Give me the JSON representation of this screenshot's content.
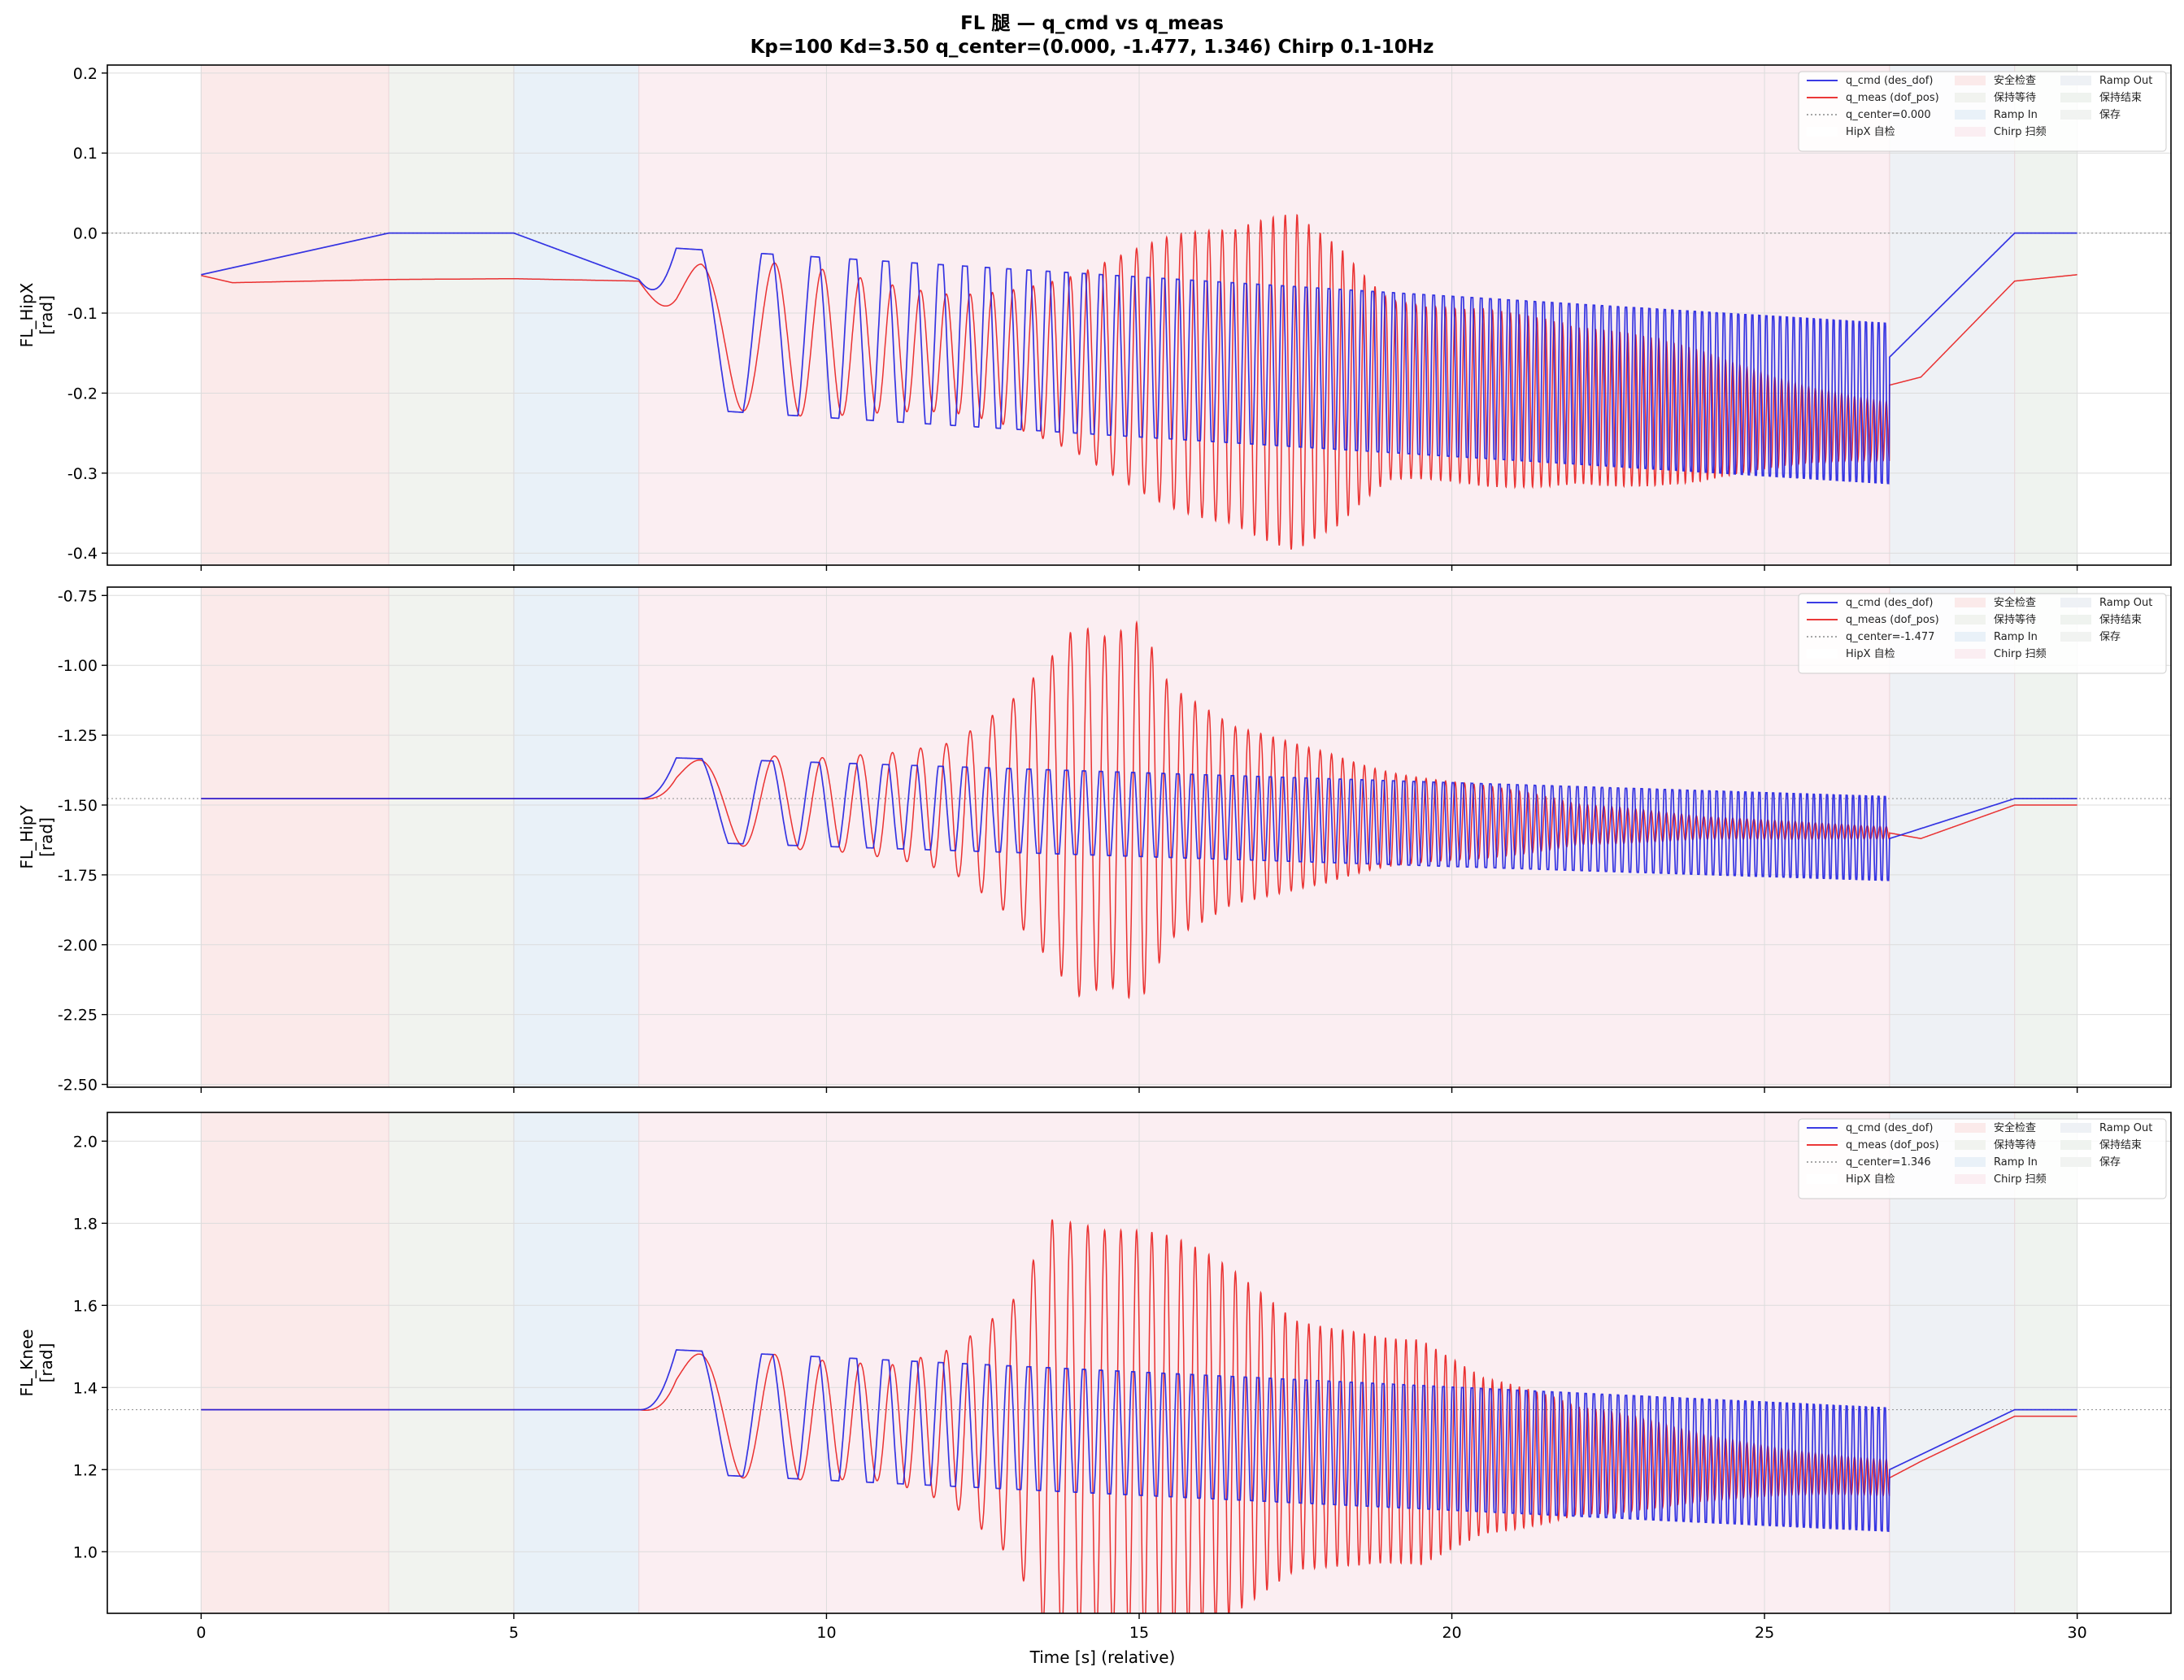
{
  "title_line1": "FL 腿 — q_cmd vs q_meas",
  "title_line2": "Kp=100 Kd=3.50  q_center=(0.000, -1.477, 1.346)  Chirp 0.1-10Hz",
  "colors": {
    "cmd": "#1f1fe0",
    "meas": "#e81c1c",
    "center": "#999999",
    "grid": "#dcdcdc"
  },
  "chart_data": {
    "type": "line",
    "xlabel": "Time [s] (relative)",
    "xlim": [
      -1.5,
      31.5
    ],
    "xticks": [
      0,
      5,
      10,
      15,
      20,
      25,
      30
    ],
    "xtick_labels": [
      "0",
      "5",
      "10",
      "15",
      "20",
      "25",
      "30"
    ],
    "phases": [
      {
        "name": "安全检查",
        "start": 0,
        "end": 3,
        "color": "#fbeaea"
      },
      {
        "name": "保持等待",
        "start": 3,
        "end": 5,
        "color": "#f1f3ef"
      },
      {
        "name": "Ramp In",
        "start": 5,
        "end": 7,
        "color": "#e9f1f8"
      },
      {
        "name": "Chirp 扫频",
        "start": 7,
        "end": 27,
        "color": "#fbeef2"
      },
      {
        "name": "Ramp Out",
        "start": 27,
        "end": 29,
        "color": "#eef1f5"
      },
      {
        "name": "保持结束",
        "start": 29,
        "end": 30,
        "color": "#eff3ef"
      }
    ],
    "chirp": {
      "t_start": 7,
      "t_end": 27,
      "f_start_hz": 0.1,
      "f_end_hz": 10
    },
    "panels": [
      {
        "name": "FL_HipX",
        "ylabel_line1": "FL_HipX",
        "ylabel_line2": "[rad]",
        "ylim": [
          -0.415,
          0.21
        ],
        "yticks": [
          0.2,
          0.1,
          0.0,
          -0.1,
          -0.2,
          -0.3,
          -0.4
        ],
        "ytick_labels": [
          "0.2",
          "0.1",
          "0.0",
          "-0.1",
          "-0.2",
          "-0.3",
          "-0.4"
        ],
        "q_center": 0.0,
        "amplitude": 0.1,
        "chirp_offset": -0.058,
        "cmd_keypoints": [
          [
            0,
            -0.052
          ],
          [
            3,
            0.0
          ],
          [
            5,
            0.0
          ],
          [
            7,
            -0.058
          ],
          [
            27,
            -0.155
          ],
          [
            29,
            0.0
          ],
          [
            30,
            0.0
          ]
        ],
        "meas_keypoints": [
          [
            0,
            -0.053
          ],
          [
            0.5,
            -0.062
          ],
          [
            3,
            -0.058
          ],
          [
            5,
            -0.057
          ],
          [
            7,
            -0.06
          ],
          [
            27,
            -0.19
          ],
          [
            27.5,
            -0.18
          ],
          [
            29,
            -0.06
          ],
          [
            30,
            -0.052
          ]
        ],
        "meas_gain_envelope": [
          [
            7,
            0.4
          ],
          [
            8,
            0.9
          ],
          [
            10,
            1.0
          ],
          [
            12,
            1.05
          ],
          [
            14,
            1.3
          ],
          [
            15.5,
            1.7
          ],
          [
            16.5,
            1.9
          ],
          [
            17.5,
            2.5
          ],
          [
            18.2,
            2.3
          ],
          [
            19,
            1.6
          ],
          [
            20.5,
            1.4
          ],
          [
            22,
            1.0
          ],
          [
            24,
            0.9
          ],
          [
            25.5,
            0.7
          ],
          [
            27,
            0.5
          ]
        ],
        "legend": {
          "cmd": "q_cmd (des_dof)",
          "meas": "q_meas (dof_pos)",
          "center": "q_center=0.000",
          "hipx": "HipX 自检"
        }
      },
      {
        "name": "FL_HipY",
        "ylabel_line1": "FL_HipY",
        "ylabel_line2": "[rad]",
        "ylim": [
          -2.51,
          -0.72
        ],
        "yticks": [
          -0.75,
          -1.0,
          -1.25,
          -1.5,
          -1.75,
          -2.0,
          -2.25,
          -2.5
        ],
        "ytick_labels": [
          "-0.75",
          "-1.00",
          "-1.25",
          "-1.50",
          "-1.75",
          "-2.00",
          "-2.25",
          "-2.50"
        ],
        "q_center": -1.477,
        "amplitude": 0.15,
        "chirp_offset": 0.0,
        "cmd_keypoints": [
          [
            0,
            -1.477
          ],
          [
            7,
            -1.477
          ],
          [
            27,
            -1.62
          ],
          [
            29,
            -1.477
          ],
          [
            30,
            -1.477
          ]
        ],
        "meas_keypoints": [
          [
            0,
            -1.477
          ],
          [
            7,
            -1.477
          ],
          [
            27,
            -1.6
          ],
          [
            27.5,
            -1.62
          ],
          [
            29,
            -1.5
          ],
          [
            30,
            -1.5
          ]
        ],
        "meas_gain_envelope": [
          [
            7,
            0.8
          ],
          [
            8,
            1.0
          ],
          [
            10,
            1.2
          ],
          [
            11,
            1.6
          ],
          [
            12,
            2.2
          ],
          [
            13,
            3.6
          ],
          [
            14,
            5.2
          ],
          [
            14.5,
            4.5
          ],
          [
            15,
            4.7
          ],
          [
            15.5,
            3.0
          ],
          [
            16.5,
            2.2
          ],
          [
            18,
            2.0
          ],
          [
            19,
            1.6
          ],
          [
            20.5,
            1.1
          ],
          [
            22,
            0.5
          ],
          [
            24,
            0.3
          ],
          [
            25.5,
            0.3
          ],
          [
            27,
            0.2
          ]
        ],
        "legend": {
          "cmd": "q_cmd (des_dof)",
          "meas": "q_meas (dof_pos)",
          "center": "q_center=-1.477",
          "hipx": "HipX 自检"
        }
      },
      {
        "name": "FL_Knee",
        "ylabel_line1": "FL_Knee",
        "ylabel_line2": "[rad]",
        "ylim": [
          0.85,
          2.07
        ],
        "yticks": [
          2.0,
          1.8,
          1.6,
          1.4,
          1.2,
          1.0
        ],
        "ytick_labels": [
          "2.0",
          "1.8",
          "1.6",
          "1.4",
          "1.2",
          "1.0"
        ],
        "q_center": 1.346,
        "amplitude": 0.15,
        "chirp_offset": 0.0,
        "cmd_keypoints": [
          [
            0,
            1.346
          ],
          [
            7,
            1.346
          ],
          [
            27,
            1.2
          ],
          [
            29,
            1.346
          ],
          [
            30,
            1.346
          ]
        ],
        "meas_keypoints": [
          [
            0,
            1.346
          ],
          [
            7,
            1.346
          ],
          [
            27,
            1.18
          ],
          [
            27.5,
            1.22
          ],
          [
            29,
            1.33
          ],
          [
            30,
            1.33
          ]
        ],
        "meas_gain_envelope": [
          [
            7,
            0.8
          ],
          [
            8,
            1.0
          ],
          [
            10,
            1.05
          ],
          [
            11,
            1.2
          ],
          [
            12,
            1.8
          ],
          [
            13,
            2.9
          ],
          [
            13.6,
            4.3
          ],
          [
            14.5,
            3.6
          ],
          [
            15.5,
            3.3
          ],
          [
            16.5,
            2.9
          ],
          [
            17.5,
            2.4
          ],
          [
            18.5,
            2.6
          ],
          [
            19.5,
            2.6
          ],
          [
            20.5,
            1.6
          ],
          [
            22,
            0.9
          ],
          [
            24,
            0.6
          ],
          [
            25.5,
            0.5
          ],
          [
            27,
            0.4
          ]
        ],
        "legend": {
          "cmd": "q_cmd (des_dof)",
          "meas": "q_meas (dof_pos)",
          "center": "q_center=1.346",
          "hipx": "HipX 自检"
        }
      }
    ]
  }
}
